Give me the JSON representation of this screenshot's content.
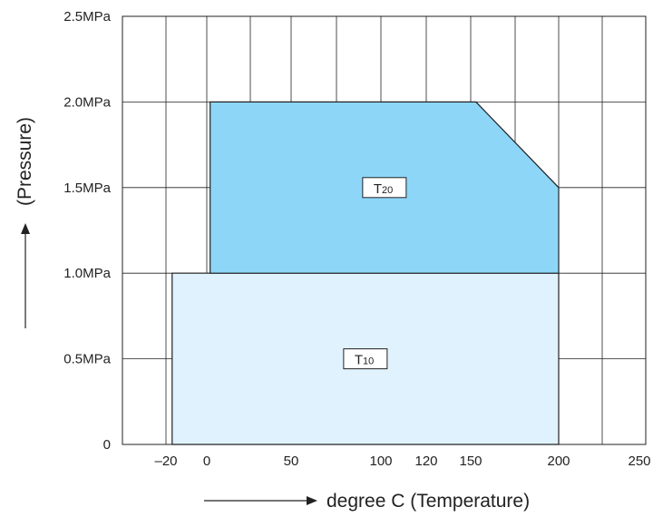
{
  "chart_data": {
    "type": "area",
    "xlabel": "degree C (Temperature)",
    "ylabel": "(Pressure)",
    "x_ticks": [
      {
        "value": -20,
        "label": "–20"
      },
      {
        "value": 0,
        "label": "0"
      },
      {
        "value": 50,
        "label": "50"
      },
      {
        "value": 100,
        "label": "100"
      },
      {
        "value": 120,
        "label": "120"
      },
      {
        "value": 150,
        "label": "150"
      },
      {
        "value": 200,
        "label": "200"
      },
      {
        "value": 250,
        "label": "250"
      }
    ],
    "y_ticks": [
      {
        "value": 0,
        "label": "0"
      },
      {
        "value": 0.5,
        "label": "0.5MPa"
      },
      {
        "value": 1.0,
        "label": "1.0MPa"
      },
      {
        "value": 1.5,
        "label": "1.5MPa"
      },
      {
        "value": 2.0,
        "label": "2.0MPa"
      },
      {
        "value": 2.5,
        "label": "2.5MPa"
      }
    ],
    "ylim": [
      0,
      2.5
    ],
    "grid": true,
    "series": [
      {
        "name": "T10",
        "label_main": "T",
        "label_sub": "10",
        "color": "#e0f2fd",
        "polygon": [
          [
            -17,
            0
          ],
          [
            200,
            0
          ],
          [
            200,
            1.0
          ],
          [
            -17,
            1.0
          ]
        ]
      },
      {
        "name": "T20",
        "label_main": "T",
        "label_sub": "20",
        "color": "#8dd6f8",
        "polygon": [
          [
            2,
            1.0
          ],
          [
            200,
            1.0
          ],
          [
            200,
            1.5
          ],
          [
            153,
            2.0
          ],
          [
            2,
            2.0
          ]
        ]
      }
    ]
  }
}
